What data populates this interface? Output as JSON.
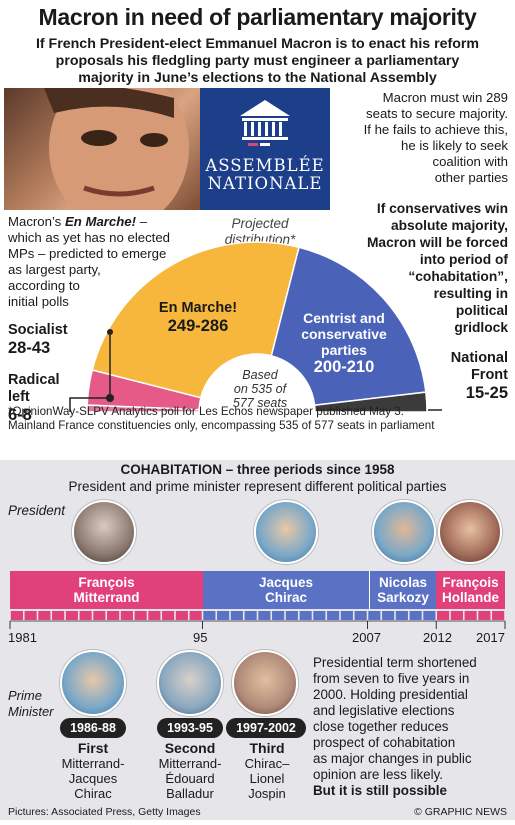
{
  "title": "Macron in need of parliamentary majority",
  "subtitle_lines": [
    "If French President-elect Emmanuel Macron is to enact his reform",
    "proposals his fledgling party must engineer a parliamentary",
    "majority in June’s elections to the National Assembly"
  ],
  "logo": {
    "line1": "ASSEMBLÉE",
    "line2": "NATIONALE"
  },
  "right_note_lines": [
    "Macron must win 289",
    "seats to secure majority.",
    "If he fails to achieve this,",
    "he is likely to seek",
    "coalition with",
    "other parties"
  ],
  "right_bold_lines": [
    "If conservatives win",
    "absolute majority,",
    "Macron will be forced",
    "into period of",
    "“cohabitation”,",
    "resulting in",
    "political",
    "gridlock"
  ],
  "left_note": {
    "prefix": "Macron’s ",
    "party": "En Marche!",
    "suffix": " –",
    "lines": [
      "which as yet has no elected",
      "MPs – predicted to emerge",
      "as largest party,",
      "according to",
      "initial polls"
    ]
  },
  "projected_label": [
    "Projected",
    "distribution*"
  ],
  "chart_data": {
    "type": "pie",
    "shape": "semicircle",
    "total_seats": 577,
    "counted_seats": 535,
    "center_label": [
      "Based",
      "on 535 of",
      "577 seats"
    ],
    "slices": [
      {
        "name": "Radical left",
        "range": "6-8",
        "low": 6,
        "high": 8,
        "color": "#e07a9a"
      },
      {
        "name": "Socialist",
        "range": "28-43",
        "low": 28,
        "high": 43,
        "color": "#e65a88"
      },
      {
        "name": "En Marche!",
        "range": "249-286",
        "low": 249,
        "high": 286,
        "color": "#f6b73c"
      },
      {
        "name": "Centrist and conservative parties",
        "range": "200-210",
        "low": 200,
        "high": 210,
        "color": "#4a63b8"
      },
      {
        "name": "National Front",
        "range": "15-25",
        "low": 15,
        "high": 25,
        "color": "#3b3b3b"
      }
    ]
  },
  "labels": {
    "socialist": {
      "name": "Socialist",
      "range": "28-43"
    },
    "radical": {
      "name1": "Radical",
      "name2": "left",
      "range": "6-8"
    },
    "enmarche": {
      "name": "En Marche!",
      "range": "249-286"
    },
    "centrist": {
      "line1": "Centrist and",
      "line2": "conservative",
      "line3": "parties",
      "range": "200-210"
    },
    "nf": {
      "name1": "National",
      "name2": "Front",
      "range": "15-25"
    }
  },
  "footnote_lines": [
    "*OpinionWay-SLPV Analytics poll for Les Echos newspaper published May 3.",
    "Mainland France constituencies only, encompassing 535 of 577 seats in parliament"
  ],
  "cohabitation": {
    "title": "COHABITATION – three periods since 1958",
    "subtitle": "President and prime minister represent different political parties",
    "president_label": "President",
    "pm_label": [
      "Prime",
      "Minister"
    ],
    "presidents": [
      {
        "name1": "François",
        "name2": "Mitterrand",
        "start": 1981,
        "end": 1995,
        "color": "#e0417a"
      },
      {
        "name1": "Jacques",
        "name2": "Chirac",
        "start": 1995,
        "end": 2007,
        "color": "#5b72c4"
      },
      {
        "name1": "Nicolas",
        "name2": "Sarkozy",
        "start": 2007,
        "end": 2012,
        "color": "#5b72c4"
      },
      {
        "name1": "François",
        "name2": "Hollande",
        "start": 2012,
        "end": 2017,
        "color": "#e0417a"
      }
    ],
    "years": [
      "1981",
      "95",
      "2007",
      "2012",
      "2017"
    ],
    "periods": [
      {
        "years": "1986-88",
        "ordinal": "First",
        "lines": [
          "Mitterrand-",
          "Jacques",
          "Chirac"
        ]
      },
      {
        "years": "1993-95",
        "ordinal": "Second",
        "lines": [
          "Mitterrand-",
          "Édouard",
          "Balladur"
        ]
      },
      {
        "years": "1997-2002",
        "ordinal": "Third",
        "lines": [
          "Chirac–",
          "Lionel",
          "Jospin"
        ]
      }
    ],
    "paragraph_lines": [
      "Presidential term shortened",
      "from seven to five years in",
      "2000. Holding presidential",
      "and legislative elections",
      "close together reduces",
      "prospect of cohabitation",
      "as major changes in public",
      "opinion are less likely."
    ],
    "paragraph_bold": "But it is still possible"
  },
  "credits": "Pictures: Associated Press, Getty Images",
  "brand": "© GRAPHIC NEWS"
}
